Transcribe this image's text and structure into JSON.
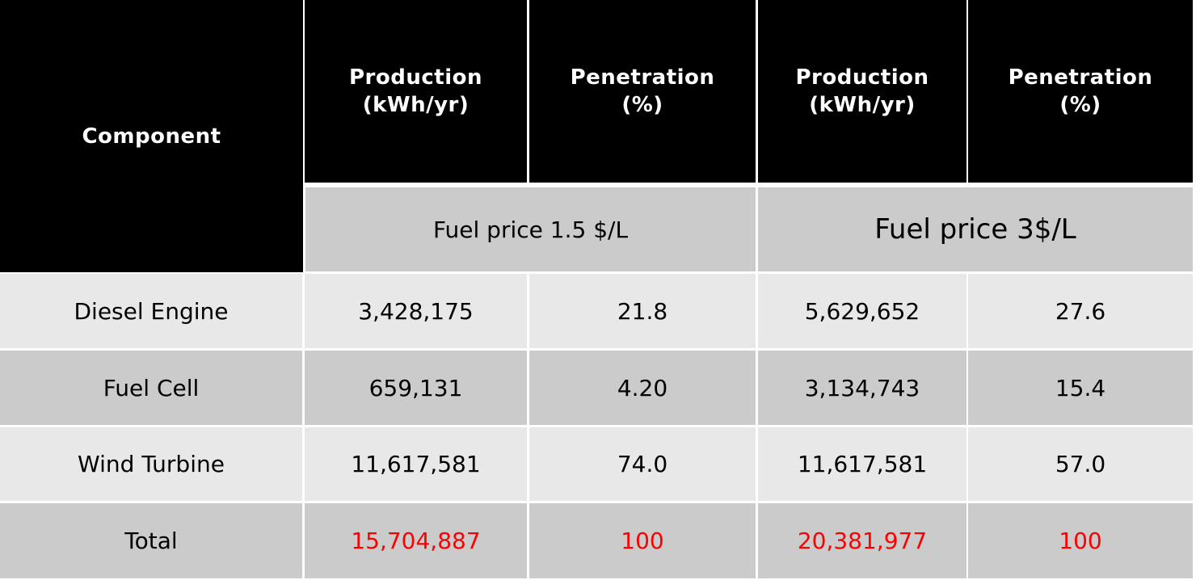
{
  "table": {
    "header": {
      "component": "Component",
      "columns": [
        {
          "line1": "Production",
          "line2": "(kWh/yr)"
        },
        {
          "line1": "Penetration",
          "line2": "(%)"
        },
        {
          "line1": "Production",
          "line2": "(kWh/yr)"
        },
        {
          "line1": "Penetration",
          "line2": "(%)"
        }
      ],
      "scenarios": [
        "Fuel price 1.5 $/L",
        "Fuel price 3$/L"
      ]
    },
    "rows": [
      {
        "component": "Diesel Engine",
        "values": [
          "3,428,175",
          "21.8",
          "5,629,652",
          "27.6"
        ]
      },
      {
        "component": "Fuel Cell",
        "values": [
          "659,131",
          "4.20",
          "3,134,743",
          "15.4"
        ]
      },
      {
        "component": "Wind Turbine",
        "values": [
          "11,617,581",
          "74.0",
          "11,617,581",
          "57.0"
        ]
      },
      {
        "component": "Total",
        "values": [
          "15,704,887",
          "100",
          "20,381,977",
          "100"
        ],
        "highlight": true
      }
    ],
    "colors": {
      "header_bg": "#000000",
      "header_text": "#ffffff",
      "row_light": "#e8e8e8",
      "row_dark": "#cbcbcb",
      "total_text": "#ff0000"
    }
  }
}
